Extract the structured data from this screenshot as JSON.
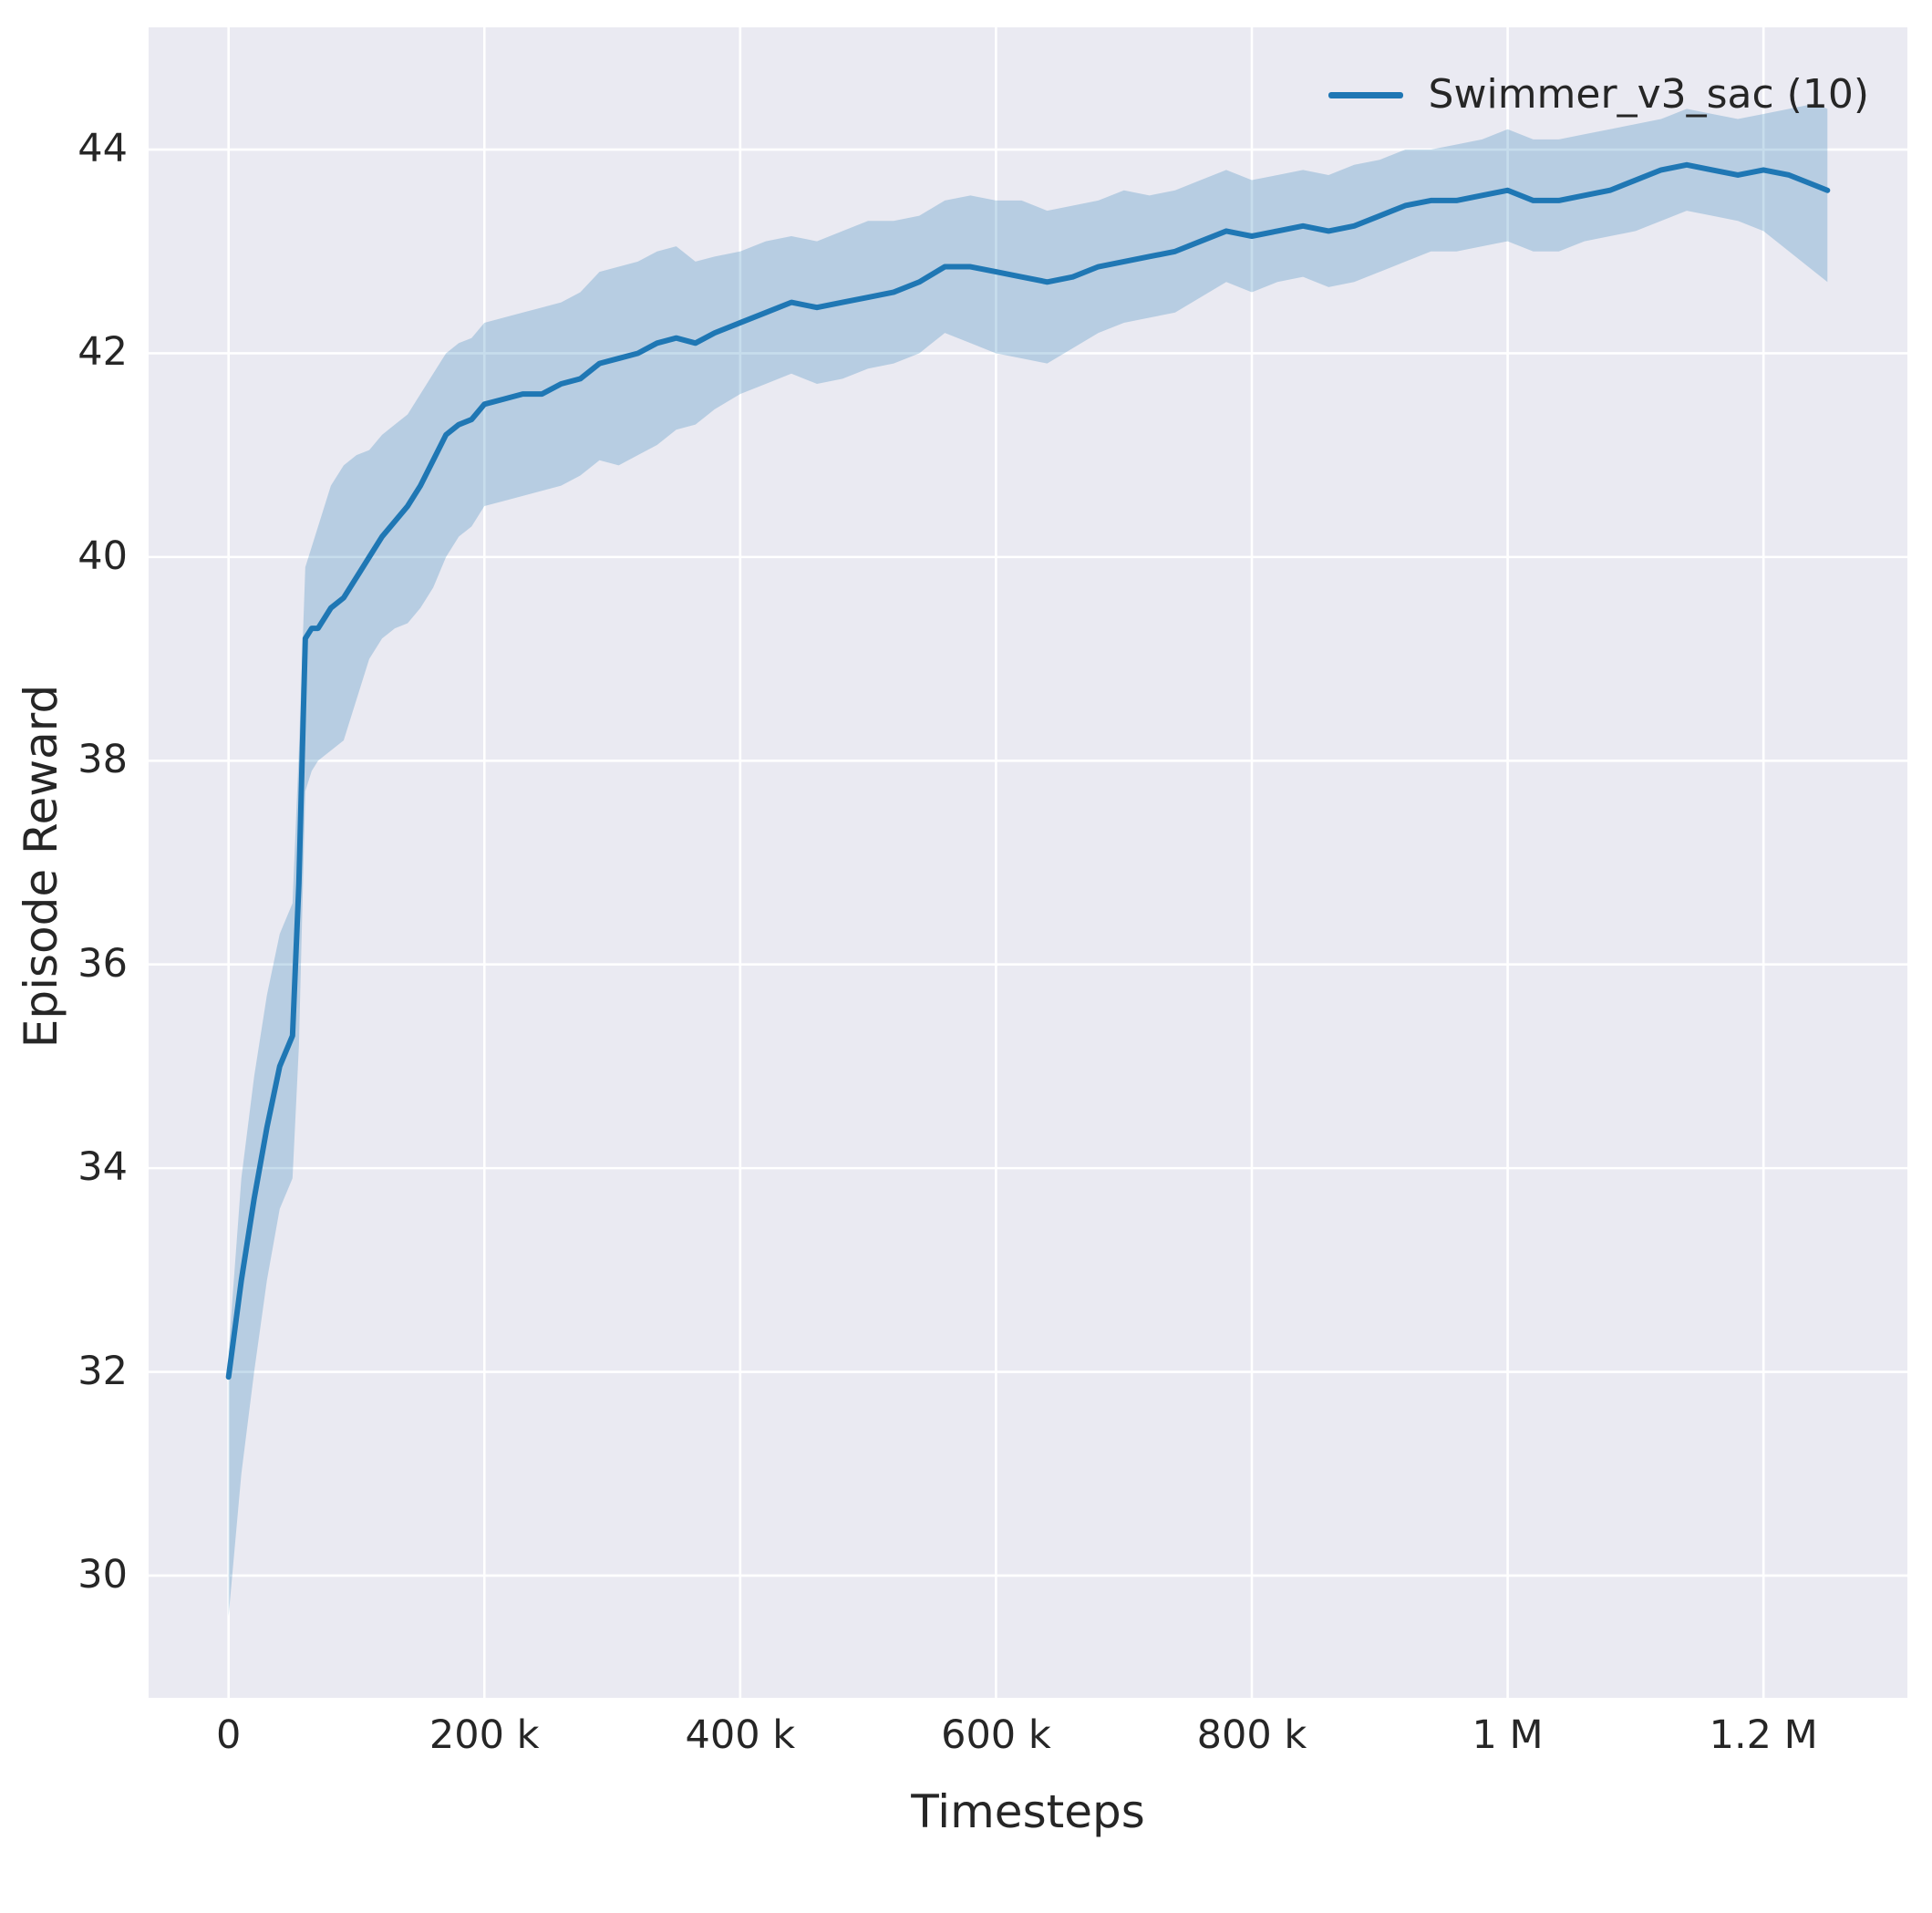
{
  "figure": {
    "background": "#ffffff",
    "plot_background": "#eaeaf2",
    "grid_color": "#ffffff",
    "text_color": "#262626"
  },
  "chart_data": {
    "type": "line",
    "title": "",
    "xlabel": "Timesteps",
    "ylabel": "Episode Reward",
    "grid": true,
    "legend_position": "upper right",
    "xlim": [
      -62500,
      1312500
    ],
    "ylim": [
      28.8,
      45.2
    ],
    "x_ticks": [
      {
        "value": 0,
        "label": "0"
      },
      {
        "value": 200000,
        "label": "200 k"
      },
      {
        "value": 400000,
        "label": "400 k"
      },
      {
        "value": 600000,
        "label": "600 k"
      },
      {
        "value": 800000,
        "label": "800 k"
      },
      {
        "value": 1000000,
        "label": "1 M"
      },
      {
        "value": 1200000,
        "label": "1.2 M"
      }
    ],
    "y_ticks": [
      {
        "value": 30,
        "label": "30"
      },
      {
        "value": 32,
        "label": "32"
      },
      {
        "value": 34,
        "label": "34"
      },
      {
        "value": 36,
        "label": "36"
      },
      {
        "value": 38,
        "label": "38"
      },
      {
        "value": 40,
        "label": "40"
      },
      {
        "value": 42,
        "label": "42"
      },
      {
        "value": 44,
        "label": "44"
      }
    ],
    "series": [
      {
        "name": "Swimmer_v3_sac (10)",
        "color": "#1f77b4",
        "band_alpha": 0.25,
        "x": [
          0,
          10000,
          20000,
          30000,
          40000,
          50000,
          55000,
          60000,
          65000,
          70000,
          80000,
          90000,
          100000,
          110000,
          120000,
          130000,
          140000,
          150000,
          160000,
          170000,
          180000,
          190000,
          200000,
          215000,
          230000,
          245000,
          260000,
          275000,
          290000,
          305000,
          320000,
          335000,
          350000,
          365000,
          380000,
          400000,
          420000,
          440000,
          460000,
          480000,
          500000,
          520000,
          540000,
          560000,
          580000,
          600000,
          620000,
          640000,
          660000,
          680000,
          700000,
          720000,
          740000,
          760000,
          780000,
          800000,
          820000,
          840000,
          860000,
          880000,
          900000,
          920000,
          940000,
          960000,
          980000,
          1000000,
          1020000,
          1040000,
          1060000,
          1080000,
          1100000,
          1120000,
          1140000,
          1160000,
          1180000,
          1200000,
          1220000,
          1240000,
          1250000
        ],
        "mean": [
          31.95,
          32.9,
          33.7,
          34.4,
          35.0,
          35.3,
          36.8,
          39.2,
          39.3,
          39.3,
          39.5,
          39.6,
          39.8,
          40.0,
          40.2,
          40.35,
          40.5,
          40.7,
          40.95,
          41.2,
          41.3,
          41.35,
          41.5,
          41.55,
          41.6,
          41.6,
          41.7,
          41.75,
          41.9,
          41.95,
          42.0,
          42.1,
          42.15,
          42.1,
          42.2,
          42.3,
          42.4,
          42.5,
          42.45,
          42.5,
          42.55,
          42.6,
          42.7,
          42.85,
          42.85,
          42.8,
          42.75,
          42.7,
          42.75,
          42.85,
          42.9,
          42.95,
          43.0,
          43.1,
          43.2,
          43.15,
          43.2,
          43.25,
          43.2,
          43.25,
          43.35,
          43.45,
          43.5,
          43.5,
          43.55,
          43.6,
          43.5,
          43.5,
          43.55,
          43.6,
          43.7,
          43.8,
          43.85,
          43.8,
          43.75,
          43.8,
          43.75,
          43.65,
          43.6
        ],
        "lower": [
          29.6,
          31.0,
          32.0,
          32.9,
          33.6,
          33.9,
          35.2,
          37.7,
          37.9,
          38.0,
          38.1,
          38.2,
          38.6,
          39.0,
          39.2,
          39.3,
          39.35,
          39.5,
          39.7,
          40.0,
          40.2,
          40.3,
          40.5,
          40.55,
          40.6,
          40.65,
          40.7,
          40.8,
          40.95,
          40.9,
          41.0,
          41.1,
          41.25,
          41.3,
          41.45,
          41.6,
          41.7,
          41.8,
          41.7,
          41.75,
          41.85,
          41.9,
          42.0,
          42.2,
          42.1,
          42.0,
          41.95,
          41.9,
          42.05,
          42.2,
          42.3,
          42.35,
          42.4,
          42.55,
          42.7,
          42.6,
          42.7,
          42.75,
          42.65,
          42.7,
          42.8,
          42.9,
          43.0,
          43.0,
          43.05,
          43.1,
          43.0,
          43.0,
          43.1,
          43.15,
          43.2,
          43.3,
          43.4,
          43.35,
          43.3,
          43.2,
          43.0,
          42.8,
          42.7
        ],
        "upper": [
          32.2,
          33.9,
          34.9,
          35.7,
          36.3,
          36.6,
          38.1,
          39.9,
          40.1,
          40.3,
          40.7,
          40.9,
          41.0,
          41.05,
          41.2,
          41.3,
          41.4,
          41.6,
          41.8,
          42.0,
          42.1,
          42.15,
          42.3,
          42.35,
          42.4,
          42.45,
          42.5,
          42.6,
          42.8,
          42.85,
          42.9,
          43.0,
          43.05,
          42.9,
          42.95,
          43.0,
          43.1,
          43.15,
          43.1,
          43.2,
          43.3,
          43.3,
          43.35,
          43.5,
          43.55,
          43.5,
          43.5,
          43.4,
          43.45,
          43.5,
          43.6,
          43.55,
          43.6,
          43.7,
          43.8,
          43.7,
          43.75,
          43.8,
          43.75,
          43.85,
          43.9,
          44.0,
          44.0,
          44.05,
          44.1,
          44.2,
          44.1,
          44.1,
          44.15,
          44.2,
          44.25,
          44.3,
          44.4,
          44.35,
          44.3,
          44.35,
          44.4,
          44.45,
          44.4
        ]
      }
    ]
  }
}
